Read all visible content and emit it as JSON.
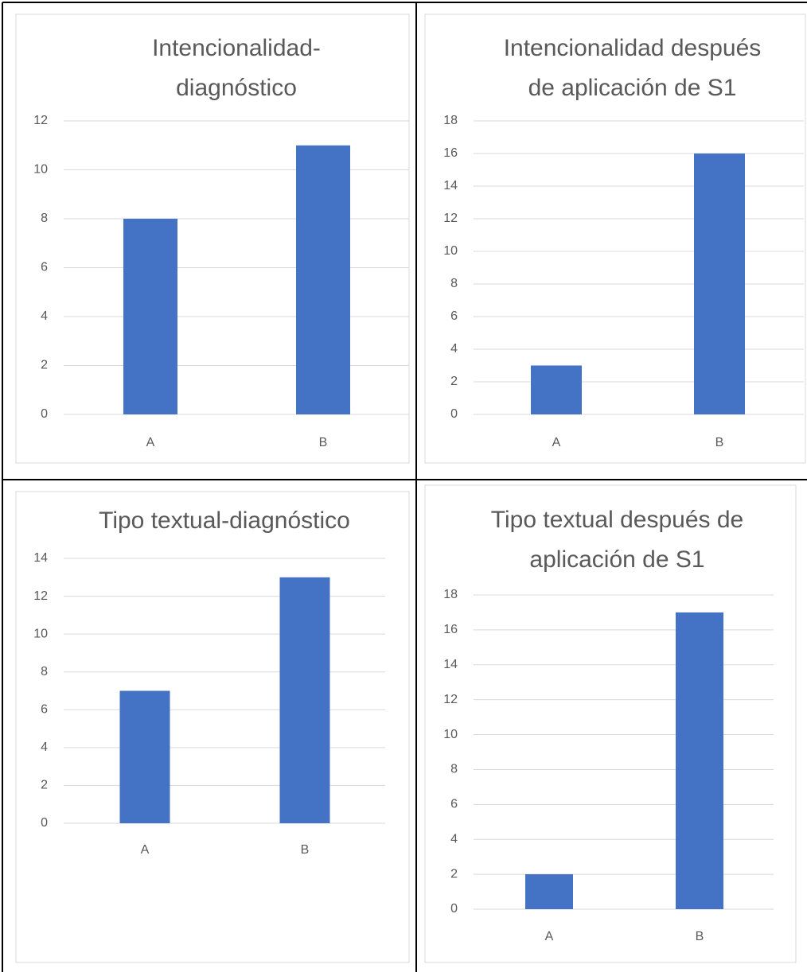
{
  "colors": {
    "bar": "#4472C4",
    "grid": "#D9D9D9",
    "text": "#595959",
    "table_border": "#000000",
    "chart_border": "#D9D9D9"
  },
  "chart_data": [
    {
      "type": "bar",
      "title_lines": [
        "Intencionalidad-",
        "diagnóstico"
      ],
      "categories": [
        "A",
        "B"
      ],
      "values": [
        8,
        11
      ],
      "yticks": [
        "0",
        "2",
        "4",
        "6",
        "8",
        "10",
        "12"
      ],
      "ylim": [
        0,
        12
      ],
      "grid": true
    },
    {
      "type": "bar",
      "title_lines": [
        "Intencionalidad después",
        "de aplicación de S1"
      ],
      "categories": [
        "A",
        "B"
      ],
      "values": [
        3,
        16
      ],
      "yticks": [
        "0",
        "2",
        "4",
        "6",
        "8",
        "10",
        "12",
        "14",
        "16",
        "18"
      ],
      "ylim": [
        0,
        18
      ],
      "grid": true
    },
    {
      "type": "bar",
      "title_lines": [
        "Tipo textual-diagnóstico"
      ],
      "categories": [
        "A",
        "B"
      ],
      "values": [
        7,
        13
      ],
      "yticks": [
        "0",
        "2",
        "4",
        "6",
        "8",
        "10",
        "12",
        "14"
      ],
      "ylim": [
        0,
        14
      ],
      "grid": true
    },
    {
      "type": "bar",
      "title_lines": [
        "Tipo textual después de",
        "aplicación de S1"
      ],
      "categories": [
        "A",
        "B"
      ],
      "values": [
        2,
        17
      ],
      "yticks": [
        "0",
        "2",
        "4",
        "6",
        "8",
        "10",
        "12",
        "14",
        "16",
        "18"
      ],
      "ylim": [
        0,
        18
      ],
      "grid": true
    }
  ]
}
